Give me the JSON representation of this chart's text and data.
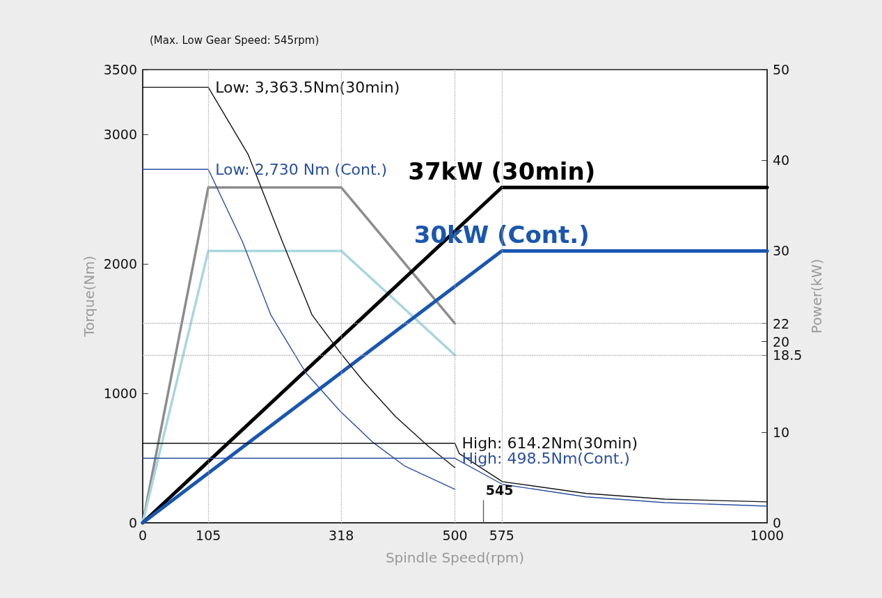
{
  "chart_data": {
    "type": "line",
    "xlabel": "Spindle Speed(rpm)",
    "ylabel": "Torque(Nm)",
    "y2label": "Power(kW)",
    "annotations": [
      "(Max. Low Gear Speed: 545rpm)"
    ],
    "xlim": [
      0,
      1000
    ],
    "xticks": [
      0,
      105,
      318,
      500,
      575,
      1000
    ],
    "ylim": [
      0,
      3500
    ],
    "yticks": [
      0,
      1000,
      2000,
      3000,
      3500
    ],
    "y2lim": [
      0,
      50
    ],
    "y2ticks": [
      0,
      10,
      18.5,
      20,
      22,
      30,
      40,
      50
    ],
    "grid": false,
    "legend": false,
    "marker": "none",
    "line_style": "solid",
    "series": [
      {
        "name": "Low: 3,363.5Nm(30min)",
        "color": "#111111",
        "x": [
          0,
          105,
          169,
          224,
          271,
          316,
          354,
          405,
          457,
          500
        ],
        "values": [
          3363.5,
          3363.5,
          2843,
          2168,
          1607,
          1316,
          1090,
          820,
          593,
          426
        ]
      },
      {
        "name": "Low: 2,730 Nm (Cont.)",
        "color": "#2a4fa0",
        "x": [
          0,
          105,
          160,
          205,
          261,
          316,
          369,
          420,
          500
        ],
        "values": [
          2730,
          2730,
          2168,
          1607,
          1160,
          863,
          620,
          437,
          259
        ]
      },
      {
        "name": "High: 614.2Nm(30min)",
        "color": "#111111",
        "x": [
          0,
          500,
          507,
          576,
          710,
          836,
          1000
        ],
        "values": [
          614.2,
          614.2,
          534,
          318,
          227,
          183,
          162
        ]
      },
      {
        "name": "High: 498.5Nm(Cont.)",
        "color": "#2a4fa0",
        "x": [
          0,
          500,
          576,
          710,
          836,
          1000
        ],
        "values": [
          498.5,
          498.5,
          297,
          200,
          156,
          129
        ]
      },
      {
        "color": "#8c8c8c",
        "axis": "y2",
        "x": [
          0,
          105,
          318,
          500
        ],
        "values": [
          0,
          37,
          37,
          22
        ]
      },
      {
        "color": "#a9d6df",
        "axis": "y2",
        "x": [
          0,
          105,
          318,
          500
        ],
        "values": [
          0,
          30,
          30,
          18.5
        ]
      },
      {
        "name": "37kW (30min)",
        "color": "#000000",
        "axis": "y2",
        "x": [
          0,
          575,
          1000
        ],
        "values": [
          0,
          37,
          37
        ]
      },
      {
        "name": "30kW (Cont.)",
        "color": "#1a56b0",
        "axis": "y2",
        "x": [
          0,
          575,
          1000
        ],
        "values": [
          0,
          30,
          30
        ]
      }
    ],
    "ref_lines": [
      {
        "axis": "x",
        "value": 105,
        "color": "#aaaaaa",
        "line_style": "dotted"
      },
      {
        "axis": "x",
        "value": 318,
        "color": "#aaaaaa",
        "line_style": "dotted"
      },
      {
        "axis": "x",
        "value": 500,
        "color": "#aaaaaa",
        "line_style": "dotted"
      },
      {
        "axis": "x",
        "value": 545,
        "label": "545",
        "color": "#555555",
        "line_style": "solid"
      },
      {
        "axis": "x",
        "value": 575,
        "color": "#aaaaaa",
        "line_style": "dotted"
      },
      {
        "axis": "y2",
        "value": 22,
        "color": "#aaaaaa",
        "line_style": "dotted"
      },
      {
        "axis": "y2",
        "value": 18.5,
        "color": "#aaaaaa",
        "line_style": "dotted"
      }
    ]
  }
}
